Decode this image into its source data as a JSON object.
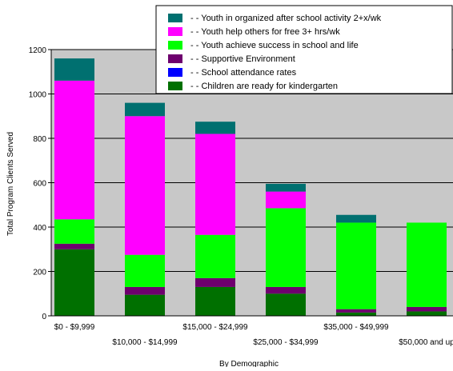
{
  "chart_data": {
    "type": "bar",
    "stacked": true,
    "title": "",
    "xlabel": "By Demographic",
    "ylabel": "Total Program Clients Served",
    "ylim": [
      0,
      1200
    ],
    "yticks": [
      "0",
      "200",
      "400",
      "600",
      "800",
      "1000",
      "1200"
    ],
    "grid": true,
    "legend_position": "top-right",
    "categories": [
      "$0 - $9,999",
      "$10,000 - $14,999",
      "$15,000 - $24,999",
      "$25,000 - $34,999",
      "$35,000 - $49,999",
      "$50,000 and up"
    ],
    "series": [
      {
        "name": "Children are ready for kindergarten",
        "color": "#007000",
        "values": [
          300,
          95,
          130,
          100,
          15,
          20
        ]
      },
      {
        "name": "School attendance rates",
        "color": "#0000ff",
        "values": [
          0,
          0,
          0,
          0,
          0,
          0
        ]
      },
      {
        "name": "Supportive Environment",
        "color": "#6e006e",
        "values": [
          25,
          35,
          40,
          30,
          15,
          20
        ]
      },
      {
        "name": "Youth achieve success in school and life",
        "color": "#00ff00",
        "values": [
          110,
          145,
          195,
          355,
          390,
          380
        ]
      },
      {
        "name": "Youth help others for free 3+ hrs/wk",
        "color": "#ff00ff",
        "values": [
          625,
          625,
          455,
          75,
          0,
          0
        ]
      },
      {
        "name": "Youth in organized after school activity 2+x/wk",
        "color": "#007070",
        "values": [
          100,
          60,
          55,
          35,
          35,
          0
        ]
      }
    ],
    "legend_prefix": "- -",
    "plot_background": "#c8c8c8"
  }
}
